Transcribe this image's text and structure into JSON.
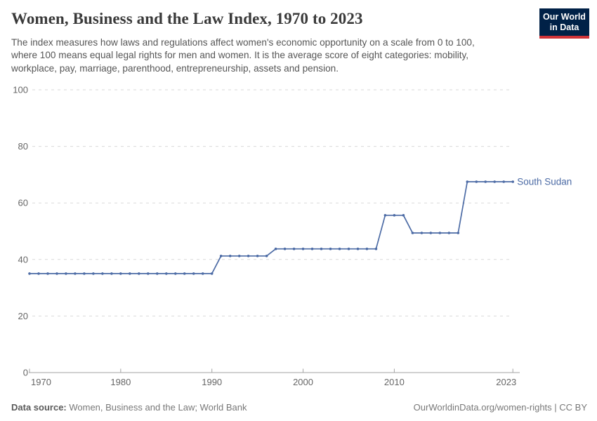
{
  "header": {
    "title": "Women, Business and the Law Index, 1970 to 2023",
    "subtitle_lines": [
      "The index measures how laws and regulations affect women's economic opportunity on a scale from 0 to 100,",
      "where 100 means equal legal rights for men and women. It is the average score of eight categories: mobility,",
      "workplace, pay, marriage, parenthood, entrepreneurship, assets and pension."
    ]
  },
  "logo": {
    "line1": "Our World",
    "line2": "in Data",
    "bg_color": "#002147",
    "stripe_color": "#cf3338"
  },
  "footer": {
    "source_label": "Data source:",
    "source_value": " Women, Business and the Law; World Bank",
    "url": "OurWorldinData.org/women-rights",
    "license": " | CC BY"
  },
  "chart_data": {
    "type": "line",
    "title": "Women, Business and the Law Index, 1970 to 2023",
    "entity_label": "South Sudan",
    "line_color": "#4c6ba5",
    "axis_color": "#a3a3a3",
    "grid_color": "#d9d9d9",
    "tick_label_color": "#666666",
    "grid": true,
    "xlim": [
      1970,
      2023
    ],
    "ylim": [
      0,
      100
    ],
    "yticks": [
      0,
      20,
      40,
      60,
      80,
      100
    ],
    "xticks": [
      1970,
      1980,
      1990,
      2000,
      2010,
      2023
    ],
    "series": [
      {
        "name": "South Sudan",
        "x": [
          1970,
          1971,
          1972,
          1973,
          1974,
          1975,
          1976,
          1977,
          1978,
          1979,
          1980,
          1981,
          1982,
          1983,
          1984,
          1985,
          1986,
          1987,
          1988,
          1989,
          1990,
          1991,
          1992,
          1993,
          1994,
          1995,
          1996,
          1997,
          1998,
          1999,
          2000,
          2001,
          2002,
          2003,
          2004,
          2005,
          2006,
          2007,
          2008,
          2009,
          2010,
          2011,
          2012,
          2013,
          2014,
          2015,
          2016,
          2017,
          2018,
          2019,
          2020,
          2021,
          2022,
          2023
        ],
        "y": [
          35,
          35,
          35,
          35,
          35,
          35,
          35,
          35,
          35,
          35,
          35,
          35,
          35,
          35,
          35,
          35,
          35,
          35,
          35,
          35,
          35,
          41.25,
          41.25,
          41.25,
          41.25,
          41.25,
          41.25,
          43.75,
          43.75,
          43.75,
          43.75,
          43.75,
          43.75,
          43.75,
          43.75,
          43.75,
          43.75,
          43.75,
          43.75,
          55.625,
          55.625,
          55.625,
          49.375,
          49.375,
          49.375,
          49.375,
          49.375,
          49.375,
          67.5,
          67.5,
          67.5,
          67.5,
          67.5,
          67.5
        ]
      }
    ]
  }
}
